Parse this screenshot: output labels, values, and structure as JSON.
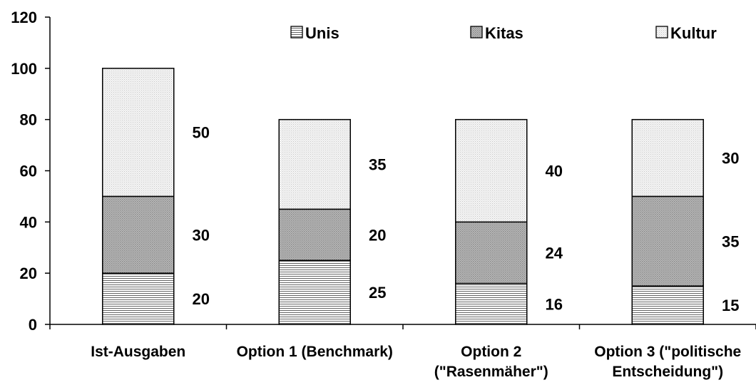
{
  "chart_data": {
    "type": "bar",
    "stacked": true,
    "categories": [
      [
        "Ist-Ausgaben"
      ],
      [
        "Option 1 (Benchmark)"
      ],
      [
        "Option 2",
        "(\"Rasenmäher\")"
      ],
      [
        "Option 3 (\"politische",
        "Entscheidung\")"
      ]
    ],
    "series": [
      {
        "name": "Unis",
        "values": [
          20,
          25,
          16,
          15
        ],
        "pattern": "horizontal-lines"
      },
      {
        "name": "Kitas",
        "values": [
          30,
          20,
          24,
          35
        ],
        "pattern": "dense-dots"
      },
      {
        "name": "Kultur",
        "values": [
          50,
          35,
          40,
          30
        ],
        "pattern": "light-dots"
      }
    ],
    "title": "",
    "xlabel": "",
    "ylabel": "",
    "ylim": [
      0,
      120
    ],
    "yticks": [
      0,
      20,
      40,
      60,
      80,
      100,
      120
    ],
    "grid": false,
    "legend": "top-right"
  }
}
